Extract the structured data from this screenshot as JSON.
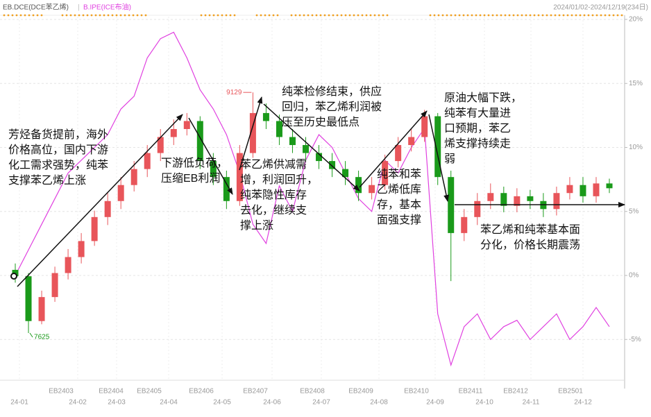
{
  "chart_data": {
    "type": "candlestick",
    "name": "EB.DCE(DCE苯乙烯)",
    "period": "2024/01/02-2024/12/19(234日)",
    "up_color": "#e8555a",
    "down_color": "#1a9a1a",
    "open": [
      8020,
      7980,
      7700,
      7850,
      8000,
      8100,
      8200,
      8350,
      8450,
      8550,
      8650,
      8750,
      8850,
      8900,
      8950,
      8700,
      8600,
      8450,
      8750,
      9000,
      8950,
      8850,
      8800,
      8750,
      8700,
      8650,
      8600,
      8500,
      8550,
      8700,
      8800,
      8850,
      8980,
      8600,
      8250,
      8350,
      8450,
      8500,
      8420,
      8480,
      8450,
      8400,
      8500,
      8550,
      8480,
      8560
    ],
    "high": [
      8060,
      8000,
      7890,
      8040,
      8150,
      8250,
      8390,
      8500,
      8600,
      8700,
      8800,
      8900,
      8960,
      9000,
      8980,
      8750,
      8640,
      8800,
      9129,
      9060,
      8990,
      8900,
      8850,
      8800,
      8750,
      8700,
      8640,
      8600,
      8740,
      8850,
      8900,
      9020,
      9000,
      8640,
      8400,
      8500,
      8560,
      8540,
      8530,
      8520,
      8500,
      8540,
      8600,
      8600,
      8600,
      8590
    ],
    "low": [
      7940,
      7625,
      7680,
      7820,
      7960,
      8060,
      8170,
      8300,
      8400,
      8510,
      8600,
      8700,
      8800,
      8860,
      8650,
      8550,
      8400,
      8420,
      8720,
      8900,
      8800,
      8750,
      8700,
      8650,
      8600,
      8550,
      8450,
      8460,
      8520,
      8660,
      8760,
      8820,
      8550,
      7950,
      8200,
      8300,
      8400,
      8380,
      8380,
      8400,
      8350,
      8360,
      8460,
      8440,
      8440,
      8500
    ],
    "close": [
      7980,
      7700,
      7850,
      8000,
      8100,
      8200,
      8350,
      8450,
      8550,
      8650,
      8750,
      8850,
      8900,
      8950,
      8700,
      8600,
      8450,
      8750,
      9000,
      8950,
      8850,
      8800,
      8750,
      8700,
      8650,
      8600,
      8500,
      8550,
      8700,
      8800,
      8850,
      8980,
      8600,
      8250,
      8350,
      8450,
      8500,
      8420,
      8480,
      8450,
      8400,
      8500,
      8550,
      8480,
      8560,
      8530
    ],
    "ylim": [
      7345,
      9585
    ],
    "overlay": {
      "name": "B.IPE(ICE布油)",
      "color": "#e040e0",
      "axis": "y2",
      "values": [
        0,
        2,
        4,
        6,
        8,
        9,
        10,
        11,
        13,
        14,
        17,
        18.5,
        19,
        17,
        14.5,
        13,
        11,
        8,
        4,
        2.5,
        7,
        5,
        9,
        11,
        10,
        8,
        6,
        5,
        9,
        8,
        10,
        11.5,
        -3,
        -7,
        -4,
        -3,
        -5,
        -4,
        -3.5,
        -5,
        -4,
        -3,
        -5,
        -4,
        -2.5,
        -4
      ]
    },
    "y2lim": [
      -8,
      20
    ],
    "y2ticks": [
      {
        "value": 20,
        "label": "20%"
      },
      {
        "value": 15,
        "label": "15%"
      },
      {
        "value": 10,
        "label": "10%"
      },
      {
        "value": 5,
        "label": "5%"
      },
      {
        "value": 0,
        "label": "0%"
      },
      {
        "value": -5,
        "label": "-5%"
      }
    ],
    "grid": true,
    "contract_labels": [
      "EB2403",
      "EB2404",
      "EB2405",
      "EB2406",
      "EB2407",
      "EB2408",
      "EB2409",
      "EB2410",
      "EB2411",
      "EB2412",
      "EB2501"
    ],
    "date_labels": [
      "24-01",
      "24-02",
      "24-03",
      "24-04",
      "24-05",
      "24-06",
      "24-07",
      "24-08",
      "24-09",
      "24-10",
      "24-11",
      "24-12"
    ],
    "annotations": [
      [
        "芳烃备货提前，海外",
        "价格高位，国内下游",
        "化工需求强势，纯苯",
        "支撑苯乙烯上涨"
      ],
      [
        "下游低负荷，",
        "压缩EB利润"
      ],
      [
        "苯乙烯供减需",
        "增，利润回升，",
        "纯苯隐性库存",
        "去化，继续支",
        "撑上涨"
      ],
      [
        "纯苯检修结束，供应",
        "回归，苯乙烯利润被",
        "压至历史最低点"
      ],
      [
        "纯苯和苯",
        "乙烯低库",
        "存，基本",
        "面强支撑"
      ],
      [
        "原油大幅下跌，",
        "纯苯有大量进",
        "口预期，苯乙",
        "烯支撑持续走",
        "弱"
      ],
      [
        "苯乙烯和纯苯基本面",
        "分化，价格长期震荡"
      ]
    ]
  }
}
